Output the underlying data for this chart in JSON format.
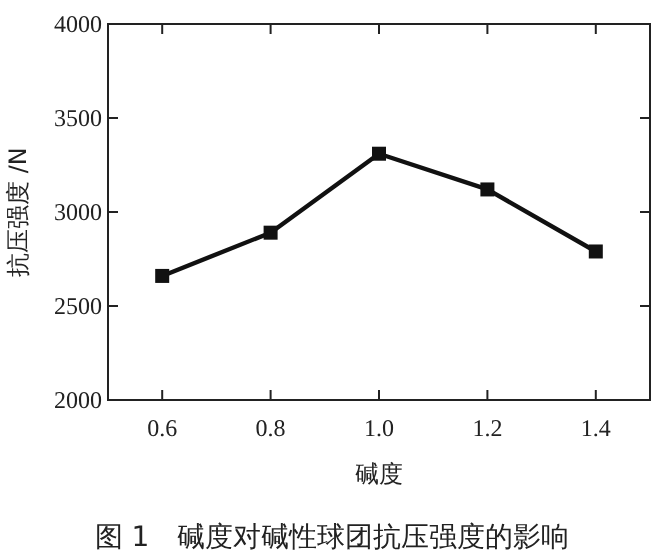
{
  "chart_data": {
    "type": "line",
    "title": "图 1　碱度对碱性球团抗压强度的影响",
    "xlabel": "碱度",
    "ylabel": "抗压强度 /N",
    "x": [
      0.6,
      0.8,
      1.0,
      1.2,
      1.4
    ],
    "series": [
      {
        "color": "#111111",
        "values": [
          2660,
          2890,
          3310,
          3120,
          2790
        ]
      }
    ],
    "xlim": [
      0.5,
      1.5
    ],
    "ylim": [
      2000,
      4000
    ],
    "xticks": [
      {
        "value": 0.6,
        "label": "0.6"
      },
      {
        "value": 0.8,
        "label": "0.8"
      },
      {
        "value": 1.0,
        "label": "1.0"
      },
      {
        "value": 1.2,
        "label": "1.2"
      },
      {
        "value": 1.4,
        "label": "1.4"
      }
    ],
    "yticks": [
      2000,
      2500,
      3000,
      3500,
      4000
    ],
    "marker": "square",
    "line_style": "solid",
    "grid": false
  }
}
